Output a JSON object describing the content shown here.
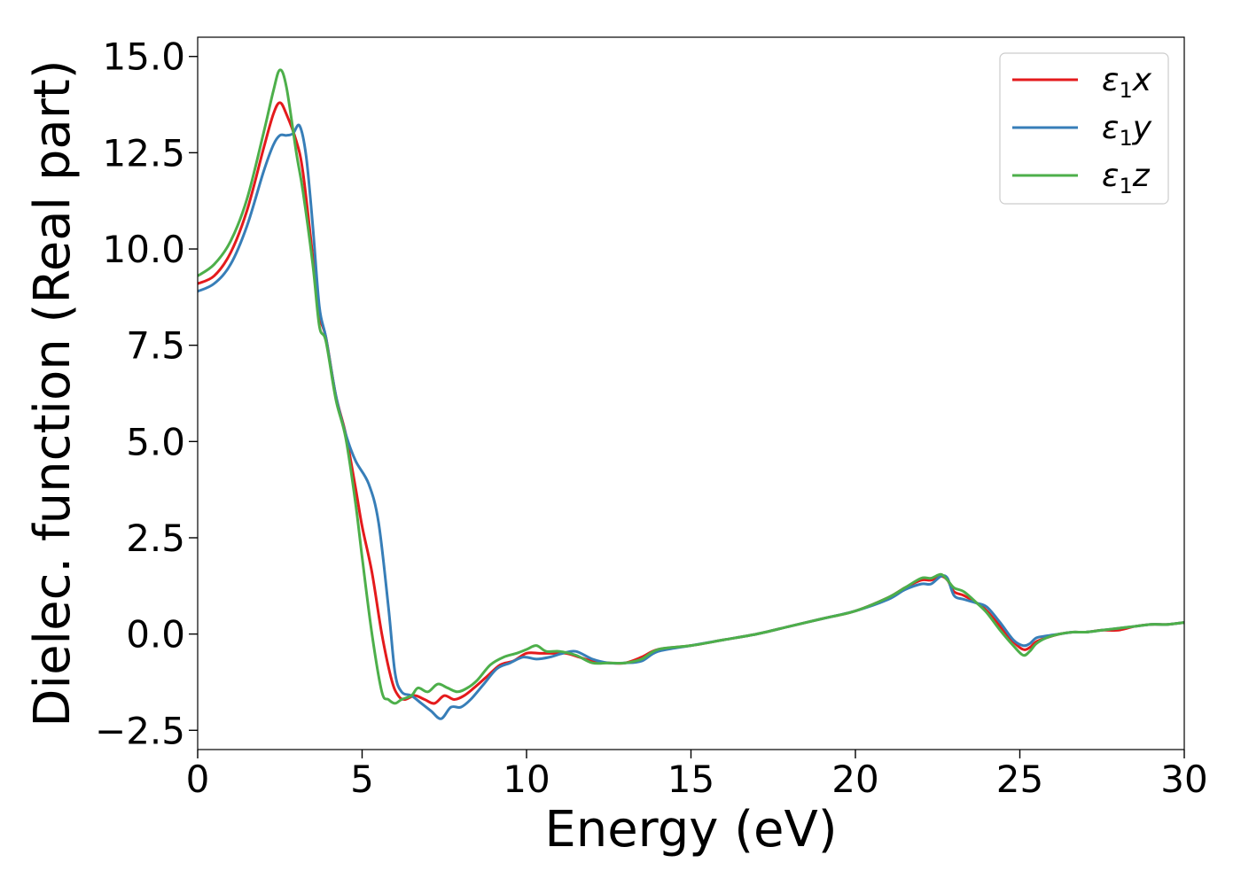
{
  "chart_data": {
    "type": "line",
    "xlabel": "Energy (eV)",
    "ylabel": "Dielec. function (Real part)",
    "xlim": [
      0,
      30
    ],
    "ylim": [
      -3.0,
      15.5
    ],
    "xticks": [
      0,
      5,
      10,
      15,
      20,
      25,
      30
    ],
    "xtick_labels": [
      "0",
      "5",
      "10",
      "15",
      "20",
      "25",
      "30"
    ],
    "yticks": [
      -2.5,
      0.0,
      2.5,
      5.0,
      7.5,
      10.0,
      12.5,
      15.0
    ],
    "ytick_labels": [
      "−2.5",
      "0.0",
      "2.5",
      "5.0",
      "7.5",
      "10.0",
      "12.5",
      "15.0"
    ],
    "grid": false,
    "legend_position": "top-right",
    "series": [
      {
        "name": "ε₁x",
        "legend_main": "ε",
        "legend_sub": "1",
        "legend_suffix": "x",
        "color": "#e41a1c",
        "x": [
          0,
          0.5,
          1.0,
          1.5,
          2.0,
          2.3,
          2.5,
          2.7,
          3.0,
          3.2,
          3.5,
          3.7,
          3.9,
          4.2,
          4.5,
          4.8,
          5.0,
          5.3,
          5.6,
          5.9,
          6.1,
          6.3,
          6.6,
          6.9,
          7.2,
          7.5,
          7.8,
          8.1,
          8.4,
          8.8,
          9.2,
          9.6,
          10.0,
          10.4,
          10.8,
          11.2,
          11.6,
          12.0,
          12.5,
          13.0,
          13.5,
          14.0,
          15.0,
          16.0,
          17.0,
          18.0,
          19.0,
          20.0,
          21.0,
          21.5,
          22.0,
          22.3,
          22.6,
          22.8,
          23.0,
          23.3,
          23.7,
          24.0,
          24.4,
          24.8,
          25.1,
          25.3,
          25.5,
          25.8,
          26.2,
          26.6,
          27.0,
          27.5,
          28.0,
          28.5,
          29.0,
          29.5,
          30.0
        ],
        "y": [
          9.1,
          9.3,
          9.9,
          11.0,
          12.6,
          13.5,
          13.8,
          13.5,
          12.8,
          12.0,
          9.8,
          8.3,
          7.7,
          6.2,
          5.2,
          3.8,
          2.8,
          1.6,
          0.0,
          -1.2,
          -1.6,
          -1.7,
          -1.6,
          -1.7,
          -1.8,
          -1.6,
          -1.7,
          -1.6,
          -1.4,
          -1.1,
          -0.8,
          -0.7,
          -0.5,
          -0.5,
          -0.5,
          -0.5,
          -0.6,
          -0.7,
          -0.75,
          -0.75,
          -0.6,
          -0.4,
          -0.3,
          -0.15,
          0.0,
          0.2,
          0.4,
          0.6,
          0.95,
          1.2,
          1.4,
          1.4,
          1.5,
          1.4,
          1.1,
          1.0,
          0.8,
          0.6,
          0.2,
          -0.2,
          -0.4,
          -0.35,
          -0.2,
          -0.1,
          0.0,
          0.05,
          0.05,
          0.1,
          0.1,
          0.2,
          0.25,
          0.25,
          0.3
        ]
      },
      {
        "name": "ε₁y",
        "legend_main": "ε",
        "legend_sub": "1",
        "legend_suffix": "y",
        "color": "#377eb8",
        "x": [
          0,
          0.5,
          1.0,
          1.5,
          2.0,
          2.3,
          2.5,
          2.7,
          2.9,
          3.1,
          3.3,
          3.5,
          3.7,
          3.9,
          4.2,
          4.5,
          4.8,
          5.2,
          5.5,
          5.8,
          6.0,
          6.2,
          6.5,
          6.8,
          7.1,
          7.4,
          7.7,
          8.0,
          8.3,
          8.7,
          9.1,
          9.5,
          9.9,
          10.3,
          10.7,
          11.1,
          11.5,
          12.0,
          12.5,
          13.0,
          13.5,
          14.0,
          15.0,
          16.0,
          17.0,
          18.0,
          19.0,
          20.0,
          21.0,
          21.5,
          22.0,
          22.3,
          22.6,
          22.8,
          23.0,
          23.3,
          23.7,
          24.0,
          24.4,
          24.8,
          25.1,
          25.3,
          25.5,
          25.8,
          26.2,
          26.6,
          27.0,
          27.5,
          28.0,
          28.5,
          29.0,
          29.5,
          30.0
        ],
        "y": [
          8.9,
          9.1,
          9.6,
          10.6,
          12.0,
          12.7,
          12.95,
          12.95,
          13.0,
          13.2,
          12.4,
          10.6,
          8.5,
          7.7,
          6.2,
          5.2,
          4.5,
          3.9,
          2.9,
          0.7,
          -1.0,
          -1.5,
          -1.6,
          -1.8,
          -2.0,
          -2.2,
          -1.9,
          -1.9,
          -1.7,
          -1.3,
          -0.9,
          -0.75,
          -0.6,
          -0.65,
          -0.6,
          -0.5,
          -0.45,
          -0.65,
          -0.75,
          -0.75,
          -0.7,
          -0.45,
          -0.3,
          -0.15,
          0.0,
          0.2,
          0.4,
          0.6,
          0.9,
          1.15,
          1.3,
          1.3,
          1.5,
          1.45,
          1.0,
          0.9,
          0.8,
          0.7,
          0.3,
          -0.15,
          -0.3,
          -0.25,
          -0.1,
          -0.05,
          0.0,
          0.05,
          0.05,
          0.1,
          0.15,
          0.2,
          0.25,
          0.25,
          0.3
        ]
      },
      {
        "name": "ε₁z",
        "legend_main": "ε",
        "legend_sub": "1",
        "legend_suffix": "z",
        "color": "#4daf4a",
        "x": [
          0,
          0.5,
          1.0,
          1.5,
          2.0,
          2.3,
          2.5,
          2.7,
          3.0,
          3.2,
          3.5,
          3.7,
          3.9,
          4.2,
          4.5,
          4.8,
          5.0,
          5.3,
          5.6,
          5.8,
          6.0,
          6.2,
          6.5,
          6.7,
          7.0,
          7.3,
          7.6,
          7.9,
          8.2,
          8.5,
          8.9,
          9.3,
          9.7,
          10.0,
          10.3,
          10.6,
          11.0,
          11.5,
          12.0,
          12.5,
          13.0,
          13.5,
          14.0,
          15.0,
          16.0,
          17.0,
          18.0,
          19.0,
          20.0,
          21.0,
          21.5,
          22.0,
          22.3,
          22.6,
          22.8,
          23.0,
          23.3,
          23.7,
          24.0,
          24.4,
          24.8,
          25.1,
          25.3,
          25.5,
          25.8,
          26.2,
          26.6,
          27.0,
          27.5,
          28.0,
          28.5,
          29.0,
          29.5,
          30.0
        ],
        "y": [
          9.3,
          9.6,
          10.2,
          11.3,
          13.0,
          14.1,
          14.65,
          14.2,
          12.5,
          11.5,
          9.6,
          8.0,
          7.6,
          6.1,
          5.1,
          3.4,
          2.0,
          0.0,
          -1.5,
          -1.7,
          -1.8,
          -1.7,
          -1.6,
          -1.4,
          -1.5,
          -1.3,
          -1.4,
          -1.5,
          -1.4,
          -1.2,
          -0.8,
          -0.6,
          -0.5,
          -0.4,
          -0.3,
          -0.45,
          -0.45,
          -0.55,
          -0.75,
          -0.75,
          -0.75,
          -0.65,
          -0.4,
          -0.3,
          -0.15,
          0.0,
          0.2,
          0.4,
          0.6,
          0.95,
          1.2,
          1.45,
          1.45,
          1.55,
          1.4,
          1.2,
          1.1,
          0.8,
          0.55,
          0.1,
          -0.3,
          -0.55,
          -0.45,
          -0.25,
          -0.1,
          0.0,
          0.05,
          0.05,
          0.1,
          0.15,
          0.2,
          0.25,
          0.25,
          0.3
        ]
      }
    ]
  }
}
